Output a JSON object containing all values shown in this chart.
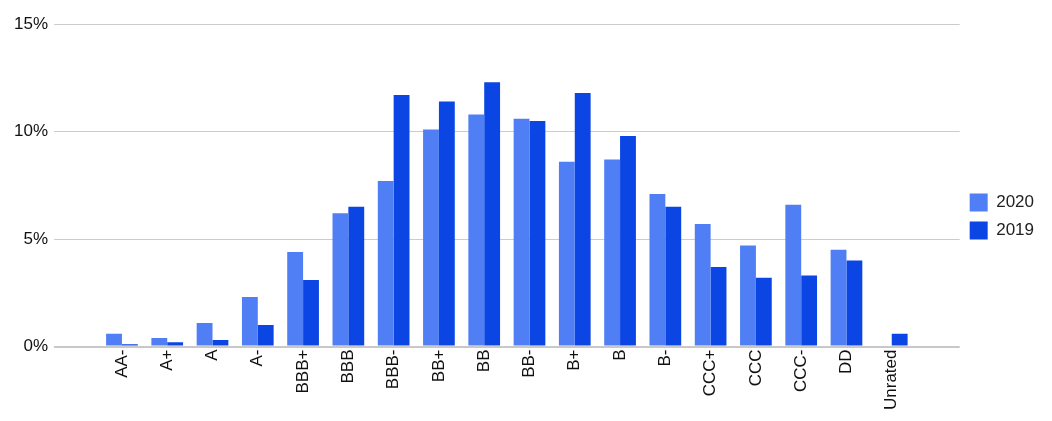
{
  "chart_data": {
    "type": "bar",
    "categories": [
      null,
      "AA-",
      "A+",
      "A",
      "A-",
      "BBB+",
      "BBB",
      "BBB-",
      "BB+",
      "BB",
      "BB-",
      "B+",
      "B",
      "B-",
      "CCC+",
      "CCC",
      "CCC-",
      "DD",
      "Unrated",
      null
    ],
    "series": [
      {
        "name": "2020",
        "color": "#4f7ef5",
        "values": [
          null,
          0.6,
          0.4,
          1.1,
          2.3,
          4.4,
          6.2,
          7.7,
          10.1,
          10.8,
          10.6,
          8.6,
          8.7,
          7.1,
          5.7,
          4.7,
          6.6,
          4.5,
          null,
          null
        ]
      },
      {
        "name": "2019",
        "color": "#0b45e3",
        "values": [
          null,
          0.1,
          0.2,
          0.3,
          1.0,
          3.1,
          6.5,
          11.7,
          11.4,
          12.3,
          10.5,
          11.8,
          9.8,
          6.5,
          3.7,
          3.2,
          3.3,
          4.0,
          0.6,
          null
        ]
      }
    ],
    "ylim": [
      0,
      15
    ],
    "yticks": [
      {
        "value": 0,
        "label": "0%"
      },
      {
        "value": 5,
        "label": "5%"
      },
      {
        "value": 10,
        "label": "10%"
      },
      {
        "value": 15,
        "label": "15%"
      }
    ],
    "grid": "y",
    "legend": "right"
  }
}
